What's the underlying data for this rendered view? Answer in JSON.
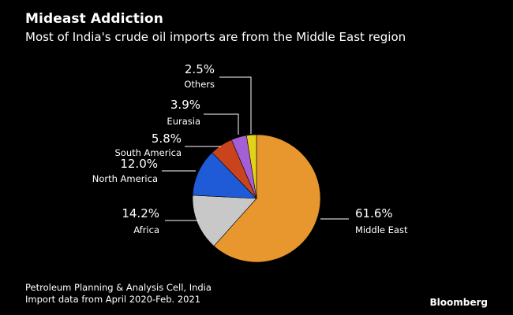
{
  "title": "Mideast Addiction",
  "subtitle": "Most of India's crude oil imports are from the Middle East region",
  "chart_data": {
    "type": "pie",
    "title": "Mideast Addiction",
    "subtitle": "Most of India's crude oil imports are from the Middle East region",
    "unit": "%",
    "slices": [
      {
        "name": "Middle East",
        "value": 61.6,
        "label": "61.6%",
        "color": "#E8962E"
      },
      {
        "name": "Africa",
        "value": 14.2,
        "label": "14.2%",
        "color": "#C8C8C8"
      },
      {
        "name": "North America",
        "value": 12.0,
        "label": "12.0%",
        "color": "#1F5BD6"
      },
      {
        "name": "South America",
        "value": 5.8,
        "label": "5.8%",
        "color": "#C9441C"
      },
      {
        "name": "Eurasia",
        "value": 3.9,
        "label": "3.9%",
        "color": "#A55FD6"
      },
      {
        "name": "Others",
        "value": 2.5,
        "label": "2.5%",
        "color": "#E2D21A"
      }
    ]
  },
  "source": {
    "line1": "Petroleum Planning & Analysis Cell, India",
    "line2": "Import data from April 2020-Feb. 2021"
  },
  "brand": "Bloomberg"
}
